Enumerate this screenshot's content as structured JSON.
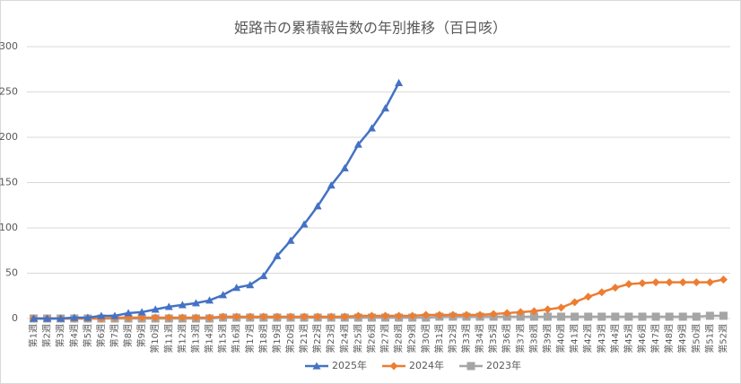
{
  "chart_data": {
    "type": "line",
    "title": "姫路市の累積報告数の年別推移（百日咳）",
    "categories": [
      "第1週",
      "第2週",
      "第3週",
      "第4週",
      "第5週",
      "第6週",
      "第7週",
      "第8週",
      "第9週",
      "第10週",
      "第11週",
      "第12週",
      "第13週",
      "第14週",
      "第15週",
      "第16週",
      "第17週",
      "第18週",
      "第19週",
      "第20週",
      "第21週",
      "第22週",
      "第23週",
      "第24週",
      "第25週",
      "第26週",
      "第27週",
      "第28週",
      "第29週",
      "第30週",
      "第31週",
      "第32週",
      "第33週",
      "第34週",
      "第35週",
      "第36週",
      "第37週",
      "第38週",
      "第39週",
      "第40週",
      "第41週",
      "第42週",
      "第43週",
      "第44週",
      "第45週",
      "第46週",
      "第47週",
      "第48週",
      "第49週",
      "第50週",
      "第51週",
      "第52週"
    ],
    "series": [
      {
        "name": "2025年",
        "color": "#4472c4",
        "marker": "triangle",
        "values": [
          0,
          0,
          0,
          1,
          1,
          3,
          3,
          6,
          7,
          10,
          13,
          15,
          17,
          20,
          26,
          34,
          37,
          47,
          69,
          86,
          104,
          124,
          147,
          166,
          192,
          210,
          232,
          260,
          null,
          null,
          null,
          null,
          null,
          null,
          null,
          null,
          null,
          null,
          null,
          null,
          null,
          null,
          null,
          null,
          null,
          null,
          null,
          null,
          null,
          null,
          null,
          null
        ]
      },
      {
        "name": "2024年",
        "color": "#ed7d31",
        "marker": "diamond",
        "values": [
          0,
          0,
          0,
          0,
          0,
          0,
          1,
          1,
          1,
          1,
          1,
          1,
          1,
          1,
          2,
          2,
          2,
          2,
          2,
          2,
          2,
          2,
          2,
          2,
          3,
          3,
          3,
          3,
          3,
          4,
          4,
          4,
          4,
          4,
          5,
          6,
          7,
          8,
          10,
          12,
          18,
          24,
          29,
          34,
          38,
          39,
          40,
          40,
          40,
          40,
          40,
          43
        ]
      },
      {
        "name": "2023年",
        "color": "#a5a5a5",
        "marker": "square",
        "values": [
          0,
          0,
          0,
          0,
          0,
          0,
          0,
          0,
          0,
          0,
          0,
          0,
          0,
          0,
          1,
          1,
          1,
          1,
          1,
          1,
          1,
          1,
          1,
          1,
          1,
          1,
          1,
          1,
          1,
          1,
          2,
          2,
          2,
          2,
          2,
          2,
          2,
          2,
          2,
          2,
          2,
          2,
          2,
          2,
          2,
          2,
          2,
          2,
          2,
          2,
          3,
          3
        ]
      }
    ],
    "ylim": [
      0,
      300
    ],
    "yticks": [
      0,
      50,
      100,
      150,
      200,
      250,
      300
    ],
    "grid": true,
    "legend": "bottom"
  }
}
